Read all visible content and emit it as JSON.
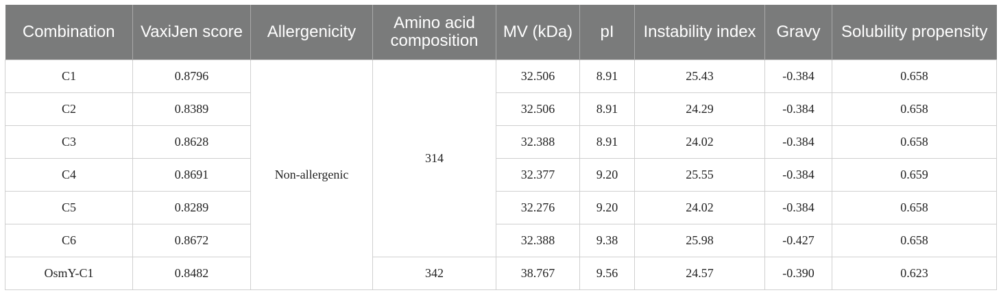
{
  "table": {
    "headers": [
      "Combination",
      "VaxiJen score",
      "Allergenicity",
      "Amino acid composition",
      "MV (kDa)",
      "pI",
      "Instability index",
      "Gravy",
      "Solubility propensity"
    ],
    "merged": {
      "allergenicity": "Non-allergenic",
      "aa_c1_c6": "314",
      "aa_osmy": "342"
    },
    "rows": [
      {
        "combination": "C1",
        "vaxijen": "0.8796",
        "mv": "32.506",
        "pi": "8.91",
        "instability": "25.43",
        "gravy": "-0.384",
        "solubility": "0.658"
      },
      {
        "combination": "C2",
        "vaxijen": "0.8389",
        "mv": "32.506",
        "pi": "8.91",
        "instability": "24.29",
        "gravy": "-0.384",
        "solubility": "0.658"
      },
      {
        "combination": "C3",
        "vaxijen": "0.8628",
        "mv": "32.388",
        "pi": "8.91",
        "instability": "24.02",
        "gravy": "-0.384",
        "solubility": "0.658"
      },
      {
        "combination": "C4",
        "vaxijen": "0.8691",
        "mv": "32.377",
        "pi": "9.20",
        "instability": "25.55",
        "gravy": "-0.384",
        "solubility": "0.659"
      },
      {
        "combination": "C5",
        "vaxijen": "0.8289",
        "mv": "32.276",
        "pi": "9.20",
        "instability": "24.02",
        "gravy": "-0.384",
        "solubility": "0.658"
      },
      {
        "combination": "C6",
        "vaxijen": "0.8672",
        "mv": "32.388",
        "pi": "9.38",
        "instability": "25.98",
        "gravy": "-0.427",
        "solubility": "0.658"
      },
      {
        "combination": "OsmY-C1",
        "vaxijen": "0.8482",
        "mv": "38.767",
        "pi": "9.56",
        "instability": "24.57",
        "gravy": "-0.390",
        "solubility": "0.623"
      }
    ]
  }
}
